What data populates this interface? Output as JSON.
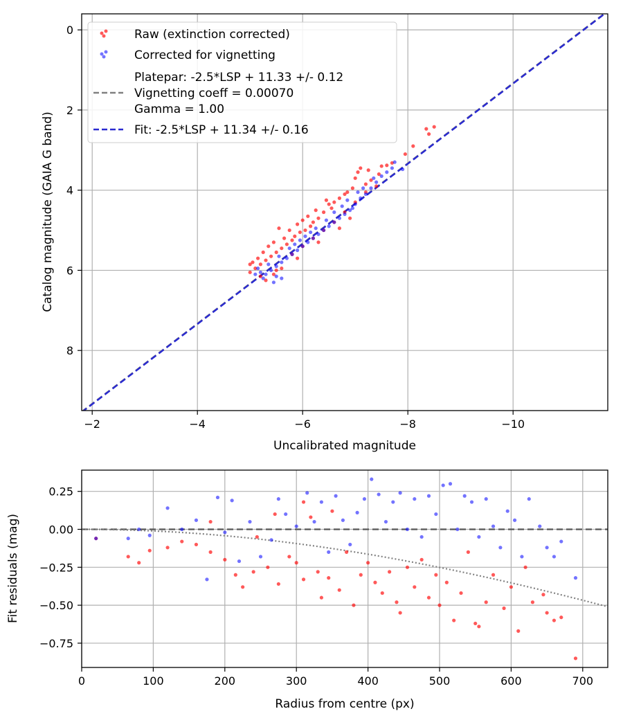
{
  "chart_data": [
    {
      "type": "scatter",
      "xlabel": "Uncalibrated magnitude",
      "ylabel": "Catalog magnitude (GAIA G band)",
      "xlim": [
        -1.8,
        -11.8
      ],
      "ylim": [
        9.5,
        -0.4
      ],
      "x_inverted": true,
      "y_inverted": true,
      "grid": true,
      "x_ticks": [
        -2,
        -4,
        -6,
        -8,
        -10
      ],
      "y_ticks": [
        0,
        2,
        4,
        6,
        8
      ],
      "x_tick_labels": [
        "−2",
        "−4",
        "−6",
        "−8",
        "−10"
      ],
      "y_tick_labels": [
        "0",
        "2",
        "4",
        "6",
        "8"
      ],
      "legend_position": "upper-left",
      "legend": [
        {
          "label": "Raw (extinction corrected)",
          "kind": "marker",
          "color": "#ff0000"
        },
        {
          "label": "Corrected for vignetting",
          "kind": "marker",
          "color": "#0000ff"
        },
        {
          "label": "Platepar: -2.5*LSP + 11.33 +/- 0.12",
          "kind": "none"
        },
        {
          "label": "Vignetting coeff = 0.00070",
          "kind": "dash",
          "color": "#808080"
        },
        {
          "label": "Gamma = 1.00",
          "kind": "none"
        },
        {
          "label": "Fit: -2.5*LSP + 11.34 +/- 0.16",
          "kind": "dash",
          "color": "#2a2ad0"
        }
      ],
      "fit_line": {
        "slope": 1.0,
        "intercept": 11.34,
        "color": "#2a2ad0"
      },
      "platepar_line": {
        "slope": 1.0,
        "intercept": 11.33,
        "color": "#808080"
      },
      "series": [
        {
          "name": "Raw (extinction corrected)",
          "color": "#ff0000",
          "points": [
            [
              -8.5,
              2.42
            ],
            [
              -8.35,
              2.47
            ],
            [
              -8.4,
              2.6
            ],
            [
              -8.1,
              2.9
            ],
            [
              -7.95,
              3.1
            ],
            [
              -7.7,
              3.32
            ],
            [
              -7.6,
              3.38
            ],
            [
              -7.45,
              3.6
            ],
            [
              -7.3,
              3.75
            ],
            [
              -7.2,
              3.85
            ],
            [
              -7.1,
              3.45
            ],
            [
              -7.05,
              3.55
            ],
            [
              -7.0,
              3.7
            ],
            [
              -6.95,
              3.95
            ],
            [
              -6.85,
              4.05
            ],
            [
              -6.8,
              4.1
            ],
            [
              -6.7,
              4.2
            ],
            [
              -6.6,
              4.3
            ],
            [
              -6.55,
              4.45
            ],
            [
              -6.5,
              4.35
            ],
            [
              -6.45,
              4.25
            ],
            [
              -6.4,
              4.55
            ],
            [
              -6.3,
              4.7
            ],
            [
              -6.25,
              4.5
            ],
            [
              -6.2,
              4.8
            ],
            [
              -6.15,
              4.9
            ],
            [
              -6.1,
              4.65
            ],
            [
              -6.05,
              5.0
            ],
            [
              -6.0,
              4.75
            ],
            [
              -5.95,
              5.05
            ],
            [
              -5.9,
              4.85
            ],
            [
              -5.85,
              5.15
            ],
            [
              -5.8,
              5.25
            ],
            [
              -5.75,
              5.0
            ],
            [
              -5.7,
              5.35
            ],
            [
              -5.65,
              5.2
            ],
            [
              -5.6,
              5.45
            ],
            [
              -5.55,
              4.95
            ],
            [
              -5.5,
              5.55
            ],
            [
              -5.45,
              5.3
            ],
            [
              -5.4,
              5.65
            ],
            [
              -5.35,
              5.4
            ],
            [
              -5.3,
              5.75
            ],
            [
              -5.25,
              5.55
            ],
            [
              -5.2,
              5.85
            ],
            [
              -5.15,
              5.7
            ],
            [
              -5.1,
              5.95
            ],
            [
              -5.05,
              5.8
            ],
            [
              -5.0,
              6.05
            ],
            [
              -5.0,
              5.85
            ],
            [
              -5.2,
              6.15
            ],
            [
              -5.3,
              6.25
            ],
            [
              -5.45,
              6.1
            ],
            [
              -5.6,
              5.95
            ],
            [
              -5.8,
              5.6
            ],
            [
              -6.0,
              5.4
            ],
            [
              -6.2,
              5.2
            ],
            [
              -6.4,
              5.0
            ],
            [
              -6.6,
              4.8
            ],
            [
              -6.8,
              4.55
            ],
            [
              -7.0,
              4.3
            ],
            [
              -7.2,
              4.05
            ],
            [
              -7.4,
              3.9
            ],
            [
              -6.9,
              4.7
            ],
            [
              -6.7,
              4.95
            ],
            [
              -6.3,
              5.3
            ],
            [
              -5.9,
              5.7
            ],
            [
              -5.5,
              6.0
            ],
            [
              -7.5,
              3.4
            ],
            [
              -7.25,
              3.5
            ]
          ]
        },
        {
          "name": "Corrected for vignetting",
          "color": "#0000ff",
          "points": [
            [
              -7.75,
              3.3
            ],
            [
              -7.7,
              3.45
            ],
            [
              -7.6,
              3.55
            ],
            [
              -7.5,
              3.65
            ],
            [
              -7.9,
              3.48
            ],
            [
              -7.4,
              3.8
            ],
            [
              -7.3,
              3.95
            ],
            [
              -7.2,
              4.1
            ],
            [
              -7.1,
              4.2
            ],
            [
              -7.0,
              4.35
            ],
            [
              -6.95,
              4.45
            ],
            [
              -6.9,
              4.5
            ],
            [
              -6.8,
              4.6
            ],
            [
              -6.7,
              4.7
            ],
            [
              -6.6,
              4.8
            ],
            [
              -6.5,
              4.9
            ],
            [
              -6.45,
              4.75
            ],
            [
              -6.4,
              5.0
            ],
            [
              -6.3,
              5.1
            ],
            [
              -6.25,
              4.95
            ],
            [
              -6.2,
              5.2
            ],
            [
              -6.1,
              5.3
            ],
            [
              -6.05,
              5.15
            ],
            [
              -6.0,
              5.4
            ],
            [
              -5.95,
              5.25
            ],
            [
              -5.9,
              5.5
            ],
            [
              -5.8,
              5.6
            ],
            [
              -5.75,
              5.45
            ],
            [
              -5.7,
              5.7
            ],
            [
              -5.6,
              5.8
            ],
            [
              -5.55,
              5.65
            ],
            [
              -5.5,
              5.9
            ],
            [
              -5.4,
              6.0
            ],
            [
              -5.35,
              5.85
            ],
            [
              -5.3,
              6.1
            ],
            [
              -5.25,
              6.2
            ],
            [
              -5.2,
              6.05
            ],
            [
              -5.15,
              5.95
            ],
            [
              -5.1,
              6.1
            ],
            [
              -5.5,
              6.15
            ],
            [
              -5.6,
              6.2
            ],
            [
              -5.45,
              6.3
            ],
            [
              -6.6,
              4.55
            ],
            [
              -6.75,
              4.4
            ],
            [
              -6.85,
              4.25
            ],
            [
              -7.05,
              4.05
            ],
            [
              -7.15,
              3.95
            ],
            [
              -7.35,
              3.7
            ],
            [
              -6.15,
              5.05
            ],
            [
              -5.85,
              5.35
            ]
          ]
        }
      ]
    },
    {
      "type": "scatter",
      "xlabel": "Radius from centre (px)",
      "ylabel": "Fit residuals (mag)",
      "xlim": [
        0,
        735
      ],
      "ylim": [
        -0.91,
        0.39
      ],
      "grid": true,
      "x_ticks": [
        0,
        100,
        200,
        300,
        400,
        500,
        600,
        700
      ],
      "y_ticks": [
        0.25,
        0.0,
        -0.25,
        -0.5,
        -0.75
      ],
      "x_tick_labels": [
        "0",
        "100",
        "200",
        "300",
        "400",
        "500",
        "600",
        "700"
      ],
      "y_tick_labels": [
        "0.25",
        "0.00",
        "−0.25",
        "−0.50",
        "−0.75"
      ],
      "zero_line": {
        "y": 0.0,
        "color": "#555555"
      },
      "vignetting_curve": {
        "coeff": 0.0007,
        "color": "#808080"
      },
      "series": [
        {
          "name": "Raw (extinction corrected)",
          "color": "#ff0000",
          "points": [
            [
              20,
              -0.06
            ],
            [
              65,
              -0.18
            ],
            [
              80,
              -0.22
            ],
            [
              95,
              -0.14
            ],
            [
              120,
              -0.12
            ],
            [
              140,
              -0.08
            ],
            [
              160,
              -0.1
            ],
            [
              180,
              -0.15
            ],
            [
              200,
              -0.2
            ],
            [
              215,
              -0.3
            ],
            [
              225,
              -0.38
            ],
            [
              240,
              -0.28
            ],
            [
              260,
              -0.25
            ],
            [
              275,
              -0.36
            ],
            [
              290,
              -0.18
            ],
            [
              300,
              -0.22
            ],
            [
              310,
              -0.33
            ],
            [
              320,
              0.08
            ],
            [
              330,
              -0.28
            ],
            [
              335,
              -0.45
            ],
            [
              345,
              -0.32
            ],
            [
              360,
              -0.4
            ],
            [
              370,
              -0.15
            ],
            [
              380,
              -0.5
            ],
            [
              390,
              -0.3
            ],
            [
              400,
              -0.22
            ],
            [
              410,
              -0.35
            ],
            [
              420,
              -0.42
            ],
            [
              430,
              -0.28
            ],
            [
              440,
              -0.48
            ],
            [
              445,
              -0.55
            ],
            [
              455,
              -0.25
            ],
            [
              465,
              -0.38
            ],
            [
              475,
              -0.2
            ],
            [
              485,
              -0.45
            ],
            [
              495,
              -0.3
            ],
            [
              500,
              -0.5
            ],
            [
              510,
              -0.35
            ],
            [
              520,
              -0.6
            ],
            [
              530,
              -0.42
            ],
            [
              540,
              -0.15
            ],
            [
              550,
              -0.62
            ],
            [
              555,
              -0.64
            ],
            [
              565,
              -0.48
            ],
            [
              575,
              -0.3
            ],
            [
              590,
              -0.52
            ],
            [
              600,
              -0.38
            ],
            [
              610,
              -0.67
            ],
            [
              620,
              -0.25
            ],
            [
              630,
              -0.48
            ],
            [
              645,
              -0.43
            ],
            [
              650,
              -0.55
            ],
            [
              660,
              -0.6
            ],
            [
              670,
              -0.58
            ],
            [
              690,
              -0.85
            ],
            [
              350,
              0.12
            ],
            [
              310,
              0.18
            ],
            [
              270,
              0.1
            ],
            [
              245,
              -0.05
            ],
            [
              180,
              0.05
            ]
          ]
        },
        {
          "name": "Corrected for vignetting",
          "color": "#0000ff",
          "points": [
            [
              20,
              -0.06
            ],
            [
              65,
              -0.06
            ],
            [
              80,
              0.0
            ],
            [
              95,
              -0.04
            ],
            [
              120,
              0.14
            ],
            [
              140,
              0.0
            ],
            [
              160,
              0.06
            ],
            [
              175,
              -0.33
            ],
            [
              190,
              0.21
            ],
            [
              200,
              -0.02
            ],
            [
              210,
              0.19
            ],
            [
              220,
              -0.21
            ],
            [
              235,
              0.05
            ],
            [
              250,
              -0.18
            ],
            [
              265,
              -0.07
            ],
            [
              275,
              0.2
            ],
            [
              285,
              0.1
            ],
            [
              300,
              0.02
            ],
            [
              315,
              0.24
            ],
            [
              325,
              0.05
            ],
            [
              335,
              0.18
            ],
            [
              345,
              -0.15
            ],
            [
              355,
              0.22
            ],
            [
              365,
              0.06
            ],
            [
              375,
              -0.1
            ],
            [
              385,
              0.11
            ],
            [
              395,
              0.2
            ],
            [
              405,
              0.33
            ],
            [
              415,
              0.23
            ],
            [
              425,
              0.05
            ],
            [
              435,
              0.18
            ],
            [
              445,
              0.24
            ],
            [
              455,
              0.0
            ],
            [
              465,
              0.2
            ],
            [
              475,
              -0.05
            ],
            [
              485,
              0.22
            ],
            [
              495,
              0.1
            ],
            [
              505,
              0.29
            ],
            [
              515,
              0.3
            ],
            [
              525,
              0.0
            ],
            [
              535,
              0.22
            ],
            [
              545,
              0.18
            ],
            [
              555,
              -0.05
            ],
            [
              565,
              0.2
            ],
            [
              575,
              0.02
            ],
            [
              585,
              -0.12
            ],
            [
              595,
              0.12
            ],
            [
              605,
              0.06
            ],
            [
              615,
              -0.18
            ],
            [
              625,
              0.2
            ],
            [
              640,
              0.02
            ],
            [
              650,
              -0.12
            ],
            [
              660,
              -0.18
            ],
            [
              670,
              -0.08
            ],
            [
              690,
              -0.32
            ]
          ]
        }
      ]
    }
  ]
}
